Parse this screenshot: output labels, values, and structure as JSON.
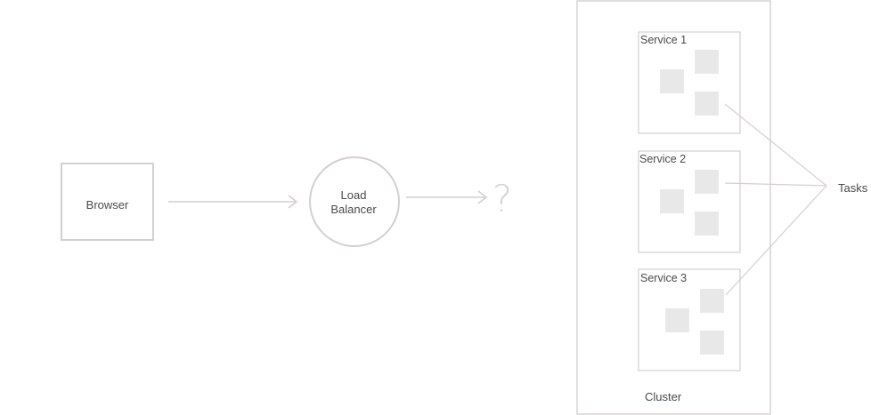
{
  "nodes": {
    "browser": "Browser",
    "load_balancer_line1": "Load",
    "load_balancer_line2": "Balancer",
    "unknown": "?",
    "cluster": "Cluster",
    "services": [
      "Service 1",
      "Service 2",
      "Service 3"
    ],
    "tasks": "Tasks"
  },
  "colors": {
    "stroke": "#d4cfcf",
    "task_fill": "#e8e8e8",
    "text": "#4a4a4a"
  }
}
